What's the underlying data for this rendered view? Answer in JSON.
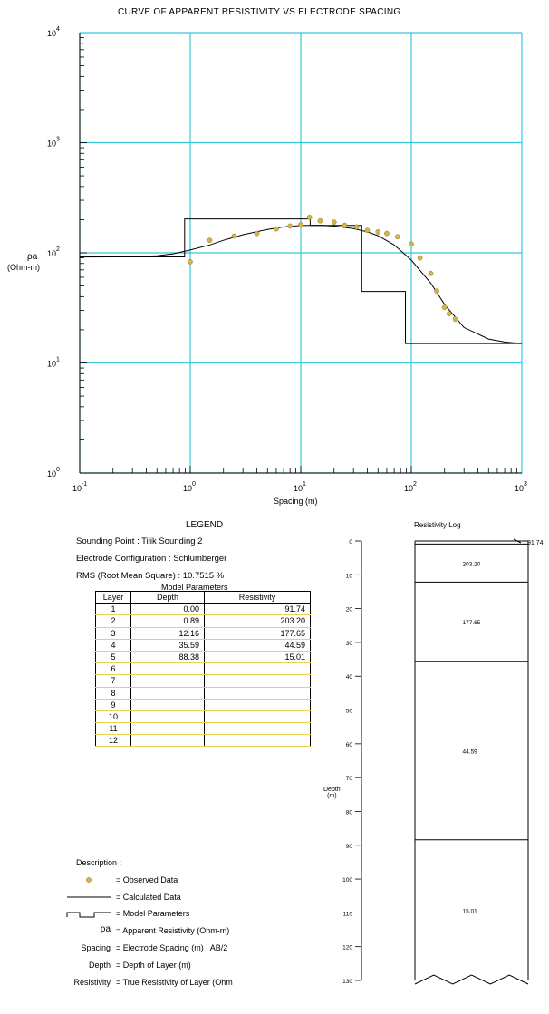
{
  "chart_data": [
    {
      "type": "scatter",
      "title": "CURVE OF APPARENT RESISTIVITY VS ELECTRODE SPACING",
      "xlabel": "Spacing (m)",
      "ylabel": [
        "ρa",
        "(Ohm-m)"
      ],
      "x_scale": "log",
      "y_scale": "log",
      "xlim": [
        0.1,
        1000
      ],
      "ylim": [
        1,
        10000
      ],
      "x_ticks": [
        {
          "base": "10",
          "exp": "-1"
        },
        {
          "base": "10",
          "exp": "0"
        },
        {
          "base": "10",
          "exp": "1"
        },
        {
          "base": "10",
          "exp": "2"
        },
        {
          "base": "10",
          "exp": "3"
        }
      ],
      "y_ticks": [
        {
          "base": "10",
          "exp": "0"
        },
        {
          "base": "10",
          "exp": "1"
        },
        {
          "base": "10",
          "exp": "2"
        },
        {
          "base": "10",
          "exp": "3"
        },
        {
          "base": "10",
          "exp": "4"
        }
      ],
      "grid": true,
      "colors": {
        "grid": "#35c8d8",
        "points": "#d6b24a",
        "lines": "#000000"
      },
      "observed": {
        "x": [
          1.0,
          1.5,
          2.5,
          4.0,
          6.0,
          8.0,
          10.0,
          12.0,
          15.0,
          20.0,
          25.0,
          32.0,
          40.0,
          50.0,
          60.0,
          75.0,
          100.0,
          120.0,
          150.0,
          170.0,
          200.0,
          220.0,
          250.0
        ],
        "y": [
          83,
          130,
          142,
          150,
          165,
          175,
          180,
          210,
          195,
          190,
          178,
          172,
          160,
          155,
          150,
          140,
          120,
          90,
          65,
          45,
          32,
          28,
          25
        ]
      },
      "calculated": {
        "x": [
          0.1,
          0.3,
          0.5,
          0.7,
          1.0,
          1.5,
          2.0,
          3.0,
          5.0,
          7.0,
          10.0,
          15.0,
          20.0,
          30.0,
          40.0,
          50.0,
          70.0,
          100.0,
          150.0,
          200.0,
          300.0,
          500.0,
          700.0,
          1000.0
        ],
        "y": [
          91.7,
          92.0,
          94.0,
          98.0,
          106.0,
          118.0,
          130.0,
          146.0,
          163.0,
          172.0,
          177.0,
          178.0,
          175.0,
          166.0,
          155.0,
          143.0,
          118.0,
          86.0,
          53.0,
          34.0,
          21.0,
          16.5,
          15.5,
          15.0
        ]
      },
      "model": {
        "depths": [
          0.89,
          12.16,
          35.59,
          88.38
        ],
        "resistivities": [
          91.74,
          203.2,
          177.65,
          44.59,
          15.01
        ]
      }
    },
    {
      "type": "table",
      "title": "Resistivity Log",
      "ylabel": [
        "Depth",
        "(m)"
      ],
      "ylim": [
        0,
        130
      ],
      "y_ticks": [
        "0",
        "10",
        "20",
        "30",
        "40",
        "50",
        "60",
        "70",
        "80",
        "90",
        "100",
        "110",
        "120",
        "130"
      ],
      "top_annotation": "91.74",
      "layers": [
        {
          "top": 0.0,
          "bottom": 0.89,
          "label": ""
        },
        {
          "top": 0.89,
          "bottom": 12.16,
          "label": "203.20"
        },
        {
          "top": 12.16,
          "bottom": 35.59,
          "label": "177.65"
        },
        {
          "top": 35.59,
          "bottom": 88.38,
          "label": "44.59"
        },
        {
          "top": 88.38,
          "bottom": 130.0,
          "label": "15.01"
        }
      ]
    }
  ],
  "legend": {
    "title": "LEGEND",
    "sounding_point": "Sounding Point  :  Tilik Sounding 2",
    "electrode_config": "Electrode Configuration  :  Schlumberger",
    "rms": "RMS (Root Mean Square)  :  10.7515 %",
    "model_params_title": "Model Parameters",
    "table_headers": [
      "Layer",
      "Depth",
      "Resistivity"
    ],
    "rows": [
      {
        "layer": "1",
        "depth": "0.00",
        "resistivity": "91.74"
      },
      {
        "layer": "2",
        "depth": "0.89",
        "resistivity": "203.20"
      },
      {
        "layer": "3",
        "depth": "12.16",
        "resistivity": "177.65"
      },
      {
        "layer": "4",
        "depth": "35.59",
        "resistivity": "44.59"
      },
      {
        "layer": "5",
        "depth": "88.38",
        "resistivity": "15.01"
      },
      {
        "layer": "6",
        "depth": "",
        "resistivity": ""
      },
      {
        "layer": "7",
        "depth": "",
        "resistivity": ""
      },
      {
        "layer": "8",
        "depth": "",
        "resistivity": ""
      },
      {
        "layer": "9",
        "depth": "",
        "resistivity": ""
      },
      {
        "layer": "10",
        "depth": "",
        "resistivity": ""
      },
      {
        "layer": "11",
        "depth": "",
        "resistivity": ""
      },
      {
        "layer": "12",
        "depth": "",
        "resistivity": ""
      }
    ],
    "description_title": "Description :",
    "descriptions": [
      {
        "symbol": "observed-dot",
        "text": "=  Observed Data"
      },
      {
        "symbol": "calc-line",
        "text": "=  Calculated Data"
      },
      {
        "symbol": "model-step",
        "text": "=  Model Parameters"
      },
      {
        "symbol": "ρa",
        "text": "=  Apparent Resistivity (Ohm-m)"
      },
      {
        "symbol": "Spacing",
        "text": "=  Electrode Spacing (m)  :  AB/2"
      },
      {
        "symbol": "Depth",
        "text": "=  Depth of Layer (m)"
      },
      {
        "symbol": "Resistivity",
        "text": "=  True Resistivity of Layer (Ohm"
      }
    ]
  }
}
